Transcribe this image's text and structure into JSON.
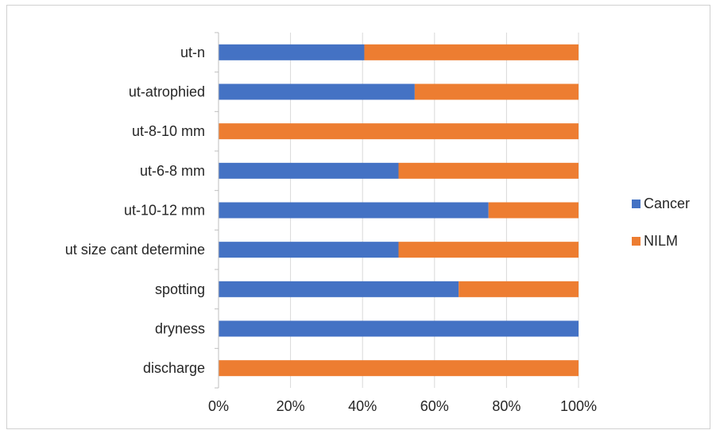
{
  "chart_data": {
    "type": "bar",
    "orientation": "horizontal",
    "stacked": "100%",
    "categories": [
      "ut-n",
      "ut-atrophied",
      "ut-8-10 mm",
      "ut-6-8 mm",
      "ut-10-12 mm",
      "ut size cant determine",
      "spotting",
      "dryness",
      "discharge"
    ],
    "series": [
      {
        "name": "Cancer",
        "color": "#4472C4",
        "values": [
          40.5,
          54.5,
          0,
          50,
          75,
          50,
          66.7,
          100,
          0
        ]
      },
      {
        "name": "NILM",
        "color": "#ED7D31",
        "values": [
          59.5,
          45.5,
          100,
          50,
          25,
          50,
          33.3,
          0,
          100
        ]
      }
    ],
    "xticks": [
      "0%",
      "20%",
      "40%",
      "60%",
      "80%",
      "100%"
    ],
    "xlim": [
      0,
      100
    ],
    "title": "",
    "xlabel": "",
    "ylabel": "",
    "grid": true,
    "legend_position": "right"
  }
}
